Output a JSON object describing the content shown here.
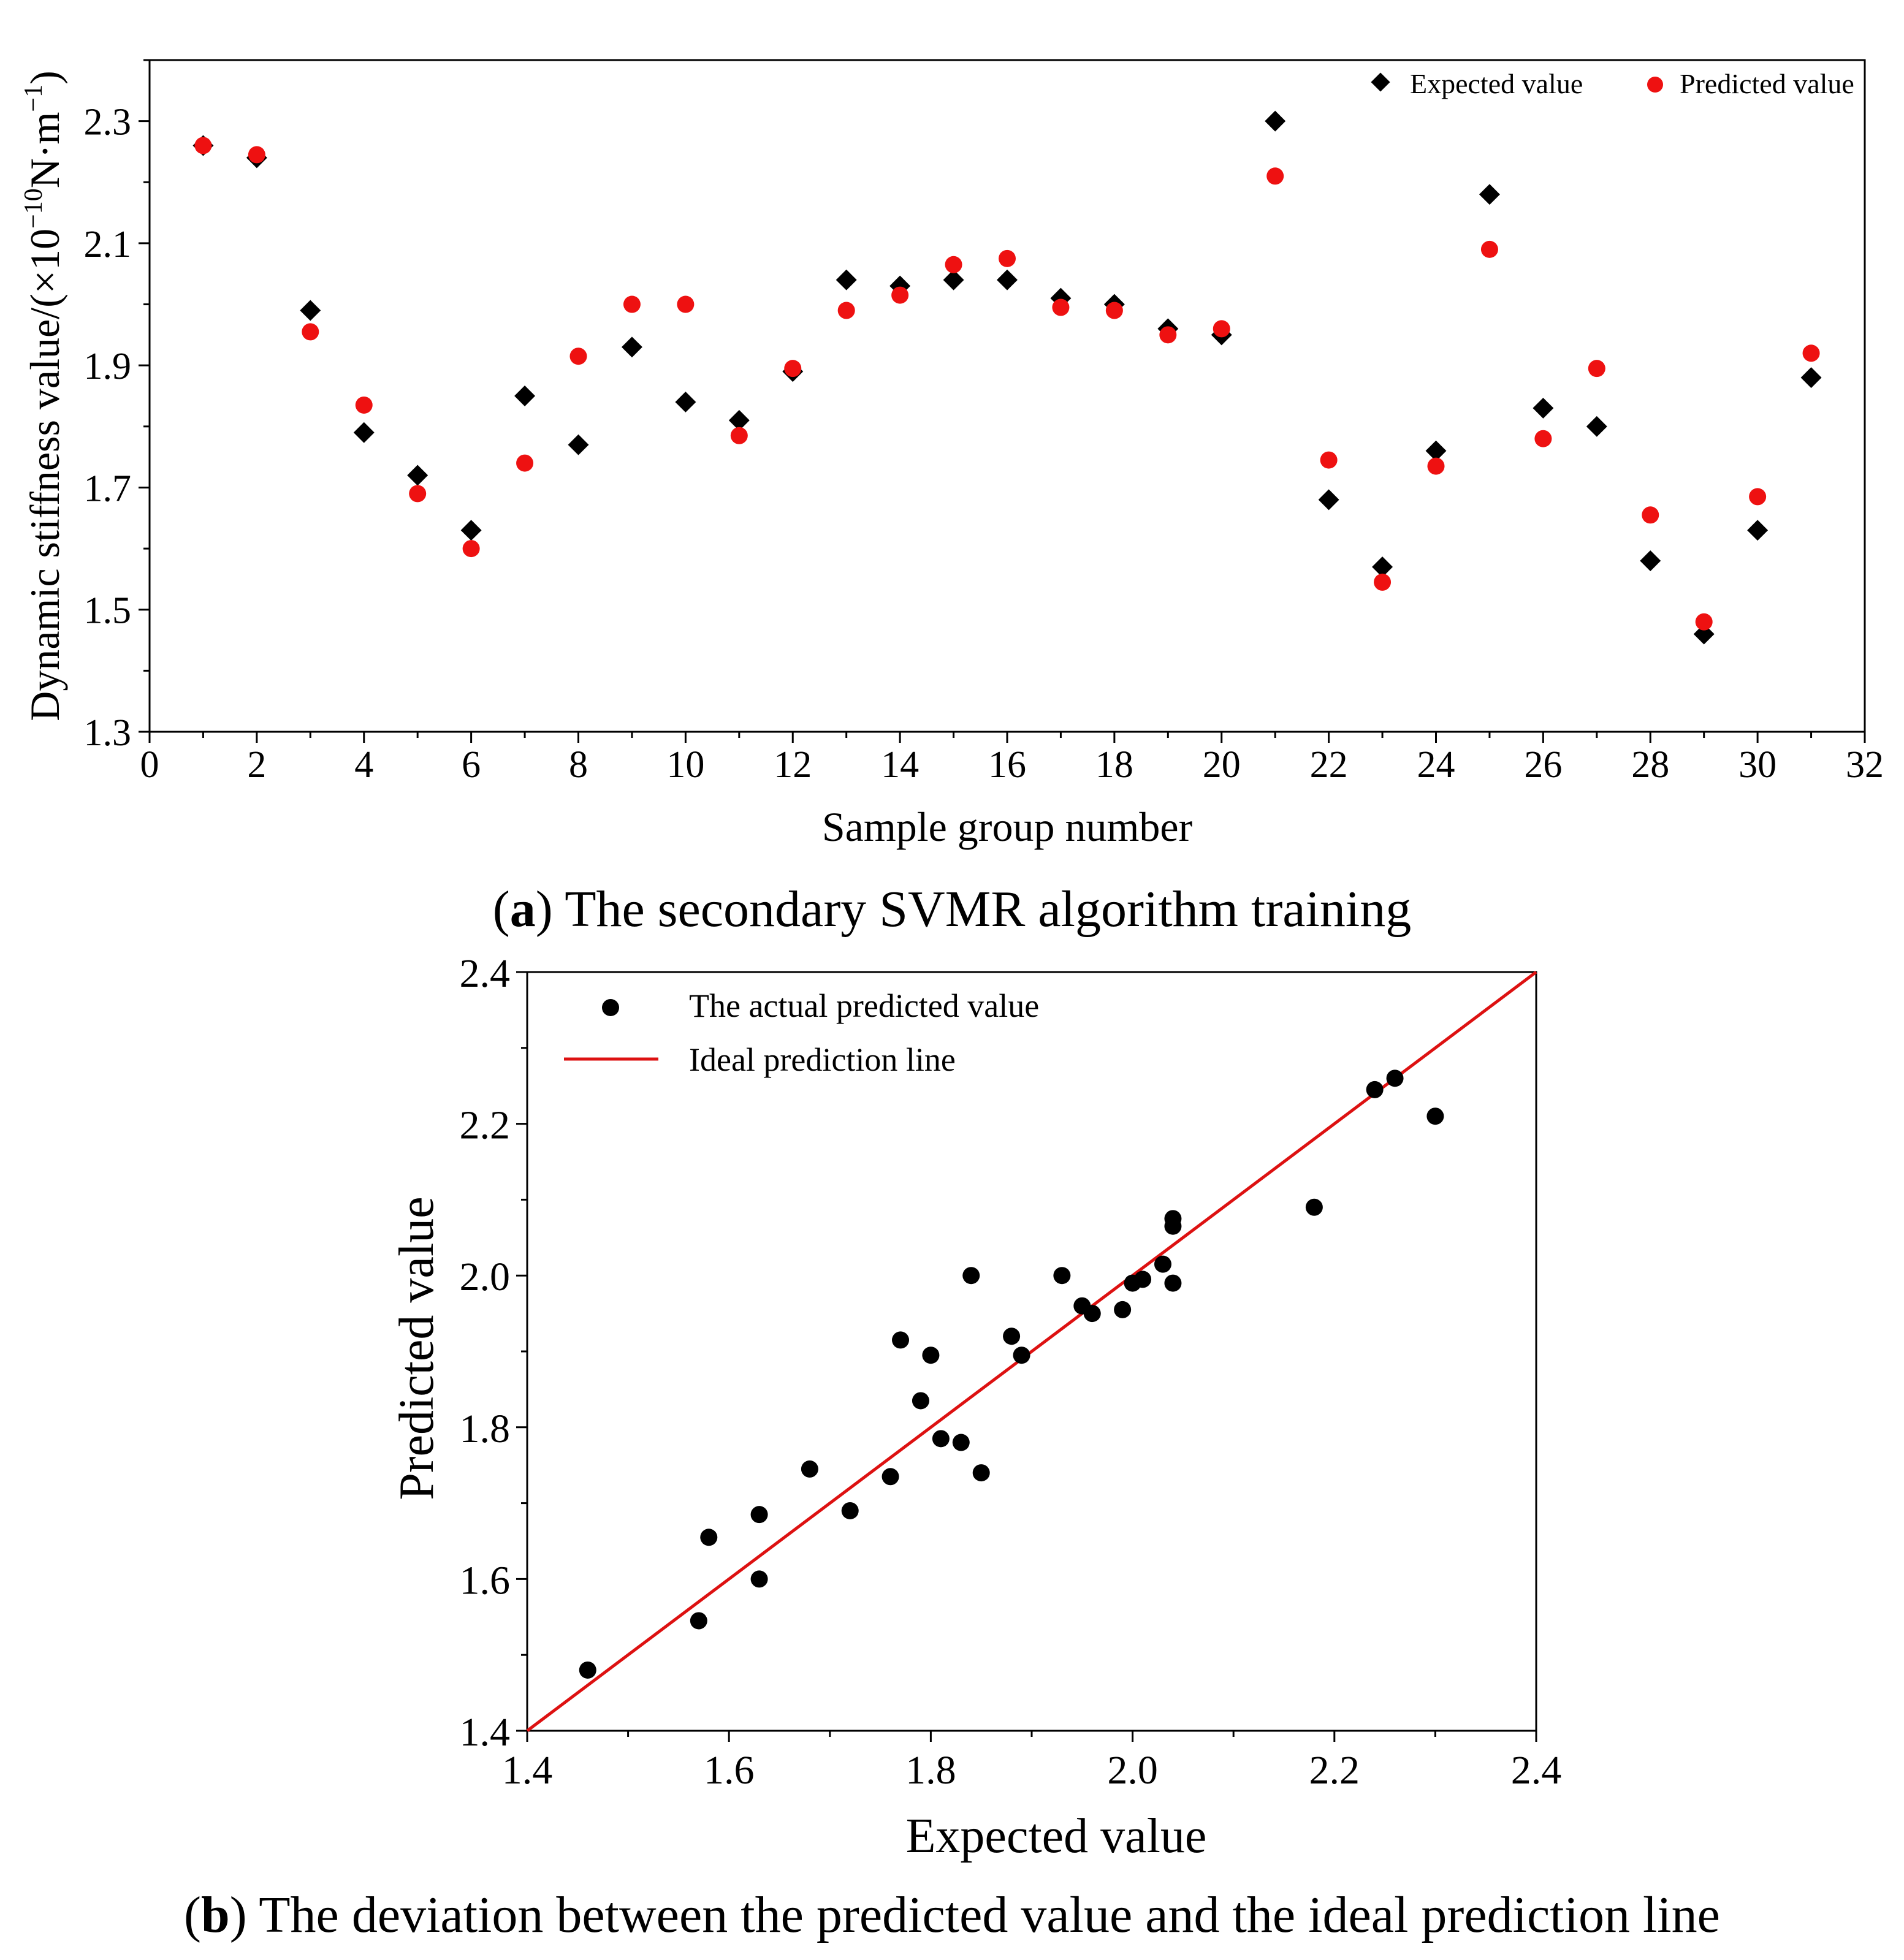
{
  "chart_data": [
    {
      "type": "scatter",
      "caption_letter": "a",
      "caption_text": "The secondary SVMR algorithm training",
      "xlabel": "Sample group number",
      "ylabel_prefix": "Dynamic stiffness value/(×10",
      "ylabel_exp1": "−10",
      "ylabel_mid": "N·m",
      "ylabel_exp2": "−1",
      "ylabel_suffix": ")",
      "xlim": [
        0,
        32
      ],
      "ylim": [
        1.3,
        2.4
      ],
      "x_ticks": [
        0,
        2,
        4,
        6,
        8,
        10,
        12,
        14,
        16,
        18,
        20,
        22,
        24,
        26,
        28,
        30,
        32
      ],
      "x_tick_labels": [
        "0",
        "2",
        "4",
        "6",
        "8",
        "10",
        "12",
        "14",
        "16",
        "18",
        "20",
        "22",
        "24",
        "26",
        "28",
        "30",
        "32"
      ],
      "y_ticks": [
        1.3,
        1.5,
        1.7,
        1.9,
        2.1,
        2.3
      ],
      "y_tick_labels": [
        "1.3",
        "1.5",
        "1.7",
        "1.9",
        "2.1",
        "2.3"
      ],
      "legend_position": "top-right",
      "x": [
        1,
        2,
        3,
        4,
        5,
        6,
        7,
        8,
        9,
        10,
        11,
        12,
        13,
        14,
        15,
        16,
        17,
        18,
        19,
        20,
        21,
        22,
        23,
        24,
        25,
        26,
        27,
        28,
        29,
        30,
        31
      ],
      "series": [
        {
          "name": "Expected value",
          "marker": "diamond",
          "color": "#000000",
          "values": [
            2.26,
            2.24,
            1.99,
            1.79,
            1.72,
            1.63,
            1.85,
            1.77,
            1.93,
            1.84,
            1.81,
            1.89,
            2.04,
            2.03,
            2.04,
            2.04,
            2.01,
            2.0,
            1.96,
            1.95,
            2.3,
            1.68,
            1.57,
            1.76,
            2.18,
            1.83,
            1.8,
            1.58,
            1.46,
            1.63,
            1.88
          ]
        },
        {
          "name": "Predicted value",
          "marker": "circle",
          "color": "#ee1111",
          "values": [
            2.26,
            2.245,
            1.955,
            1.835,
            1.69,
            1.6,
            1.74,
            1.915,
            2.0,
            2.0,
            1.785,
            1.895,
            1.99,
            2.015,
            2.065,
            2.075,
            1.995,
            1.99,
            1.95,
            1.96,
            2.21,
            1.745,
            1.545,
            1.735,
            2.09,
            1.78,
            1.895,
            1.655,
            1.48,
            1.685,
            1.92
          ]
        }
      ]
    },
    {
      "type": "scatter",
      "caption_letter": "b",
      "caption_text": "The deviation between the predicted value and the ideal prediction line",
      "xlabel": "Expected value",
      "ylabel": "Predicted value",
      "xlim": [
        1.4,
        2.4
      ],
      "ylim": [
        1.4,
        2.4
      ],
      "x_ticks": [
        1.4,
        1.6,
        1.8,
        2.0,
        2.2,
        2.4
      ],
      "x_tick_labels": [
        "1.4",
        "1.6",
        "1.8",
        "2.0",
        "2.2",
        "2.4"
      ],
      "y_ticks": [
        1.4,
        1.6,
        1.8,
        2.0,
        2.2,
        2.4
      ],
      "y_tick_labels": [
        "1.4",
        "1.6",
        "1.8",
        "2.0",
        "2.2",
        "2.4"
      ],
      "legend_position": "top-left",
      "series": [
        {
          "name": "The actual predicted value",
          "marker": "circle",
          "color": "#000000",
          "x": [
            2.26,
            2.24,
            1.99,
            1.79,
            1.72,
            1.63,
            1.85,
            1.77,
            1.93,
            1.84,
            1.81,
            1.89,
            2.04,
            2.03,
            2.04,
            2.04,
            2.01,
            2.0,
            1.96,
            1.95,
            2.3,
            1.68,
            1.57,
            1.76,
            2.18,
            1.83,
            1.8,
            1.58,
            1.46,
            1.63,
            1.88
          ],
          "y": [
            2.26,
            2.245,
            1.955,
            1.835,
            1.69,
            1.6,
            1.74,
            1.915,
            2.0,
            2.0,
            1.785,
            1.895,
            1.99,
            2.015,
            2.065,
            2.075,
            1.995,
            1.99,
            1.95,
            1.96,
            2.21,
            1.745,
            1.545,
            1.735,
            2.09,
            1.78,
            1.895,
            1.655,
            1.48,
            1.685,
            1.92
          ]
        }
      ],
      "line": {
        "name": "Ideal prediction line",
        "color": "#dd1111",
        "x": [
          1.4,
          2.4
        ],
        "y": [
          1.4,
          2.4
        ]
      }
    }
  ]
}
